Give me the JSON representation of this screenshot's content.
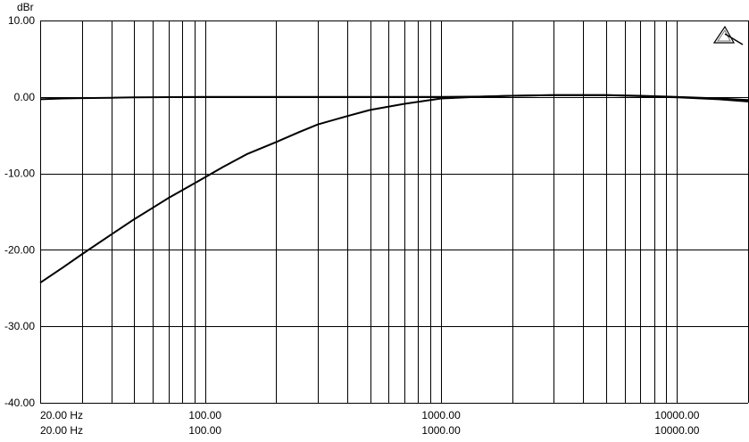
{
  "chart_data": {
    "type": "line",
    "ylabel": "dBr",
    "ylim": [
      -40,
      10
    ],
    "yticks": [
      10,
      0,
      -10,
      -20,
      -30,
      -40
    ],
    "ytick_labels": [
      "10.00",
      "0.00",
      "-10.00",
      "-20.00",
      "-30.00",
      "-40.00"
    ],
    "xscale": "log",
    "xlim": [
      20,
      20000
    ],
    "xtick_values": [
      20,
      100,
      1000,
      10000
    ],
    "xtick_labels_row1": [
      "20.00 Hz",
      "100.00",
      "1000.00",
      "10000.00"
    ],
    "xtick_labels_row2": [
      "20.00 Hz",
      "100.00",
      "1000.00",
      "10000.00"
    ],
    "grid": true,
    "series": [
      {
        "x": [
          20,
          25,
          30,
          40,
          50,
          60,
          70,
          80,
          100,
          150,
          200,
          300,
          500,
          700,
          1000,
          1500,
          2000,
          3000,
          5000,
          7000,
          10000,
          15000,
          20000
        ],
        "y": [
          -0.3,
          -0.2,
          -0.15,
          -0.1,
          -0.05,
          -0.03,
          -0.02,
          -0.01,
          0,
          0,
          0,
          0,
          0,
          0,
          0,
          0.05,
          0.15,
          0.25,
          0.25,
          0.1,
          -0.05,
          -0.3,
          -0.6
        ]
      },
      {
        "x": [
          20,
          25,
          30,
          40,
          50,
          60,
          70,
          80,
          100,
          120,
          150,
          200,
          250,
          300,
          400,
          500,
          700,
          1000,
          1500,
          2000,
          3000,
          5000,
          7000,
          10000,
          15000,
          20000
        ],
        "y": [
          -24.3,
          -22.3,
          -20.6,
          -18.0,
          -16.0,
          -14.5,
          -13.2,
          -12.2,
          -10.5,
          -9.1,
          -7.5,
          -5.9,
          -4.6,
          -3.6,
          -2.5,
          -1.7,
          -0.9,
          -0.2,
          0.05,
          0.15,
          0.25,
          0.25,
          0.15,
          0.0,
          -0.2,
          -0.4
        ]
      }
    ]
  },
  "icon": "triangle-pen-icon"
}
